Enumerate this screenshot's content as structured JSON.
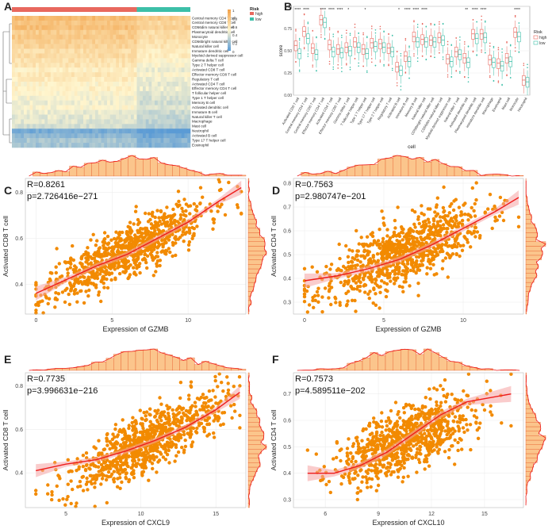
{
  "panels": {
    "A": "A",
    "B": "B",
    "C": "C",
    "D": "D",
    "E": "E",
    "F": "F"
  },
  "legend_a": {
    "risk_title": "Risk",
    "high": "high",
    "low": "low",
    "scale": [
      "1",
      "0.8",
      "0.6",
      "0.4",
      "0.2",
      "0"
    ]
  },
  "colors": {
    "high": "#e8685e",
    "low": "#3cbfa8",
    "heat_warm": "#f2a046",
    "heat_cool": "#5b9bd5",
    "point": "#f28a00",
    "line": "#ee1c1c",
    "band": "#f5a3a3",
    "hist": "#fbc58c",
    "hist_border": "#e65a2a"
  },
  "chart_data": [
    {
      "panel": "A",
      "type": "heatmap",
      "title": "",
      "columns_group": [
        "high",
        "low"
      ],
      "high_fraction": 0.7,
      "rows": [
        "Central memory CD4 T cell",
        "Central memory CD8 T cell",
        "CD56dim natural killer cell",
        "Plasmacytoid dendritic cell",
        "Monocyte",
        "CD56bright natural killer cell",
        "Natural killer cell",
        "Immature dendritic cell",
        "Myeloid derived suppressor cell",
        "Gamma delta T cell",
        "Type 2 T helper cell",
        "Activated CD8 T cell",
        "Effector memory CD8 T cell",
        "Regulatory T cell",
        "Activated CD4 T cell",
        "Effector memory CD4 T cell",
        "T follicular helper cell",
        "Type 1 T helper cell",
        "Memory B cell",
        "Activated dendritic cell",
        "Immature B cell",
        "Natural killer T cell",
        "Macrophage",
        "Mast cell",
        "Neutrophil",
        "Activated B cell",
        "Type 17 T helper cell",
        "Eosinophil"
      ],
      "row_values": [
        0.8,
        0.74,
        0.78,
        0.7,
        0.72,
        0.68,
        0.66,
        0.6,
        0.62,
        0.58,
        0.56,
        0.5,
        0.55,
        0.52,
        0.48,
        0.5,
        0.46,
        0.44,
        0.42,
        0.45,
        0.4,
        0.38,
        0.36,
        0.33,
        0.05,
        0.12,
        0.2,
        0.18
      ],
      "legend": [
        "Risk",
        "high",
        "low"
      ]
    },
    {
      "panel": "B",
      "type": "box",
      "xlabel": "cell",
      "ylabel": "score",
      "ylim": [
        0,
        1
      ],
      "yticks": [
        "0.00",
        "0.25",
        "0.50",
        "0.75",
        "1.00"
      ],
      "legend_title": "Risk",
      "legend": [
        "high",
        "low"
      ],
      "categories": [
        "Activated CD8 T cell",
        "Central memory CD4 T cell",
        "Central memory CD8 T cell",
        "Effector memory CD4 T cell",
        "Activated CD4 T cell",
        "Effector memory CD8 T cell",
        "Gamma delta T cell",
        "T follicular helper cell",
        "Type 1 T helper cell",
        "Type 17 T helper cell",
        "Type 2 T helper cell",
        "Regulatory T cell",
        "Activated B cell",
        "Immature B cell",
        "Memory B cell",
        "Natural killer cell",
        "CD56bright natural killer cell",
        "CD56dim natural killer cell",
        "Myeloid derived suppressor cell",
        "Natural killer T cell",
        "Activated dendritic cell",
        "Plasmacytoid dendritic cell",
        "Immature dendritic cell",
        "Macrophage",
        "Eosinophil",
        "Mast cell",
        "Monocyte",
        "Neutrophil"
      ],
      "significance": [
        "****",
        "****",
        "",
        "****",
        "****",
        "****",
        "*",
        "",
        "*",
        "",
        "",
        "",
        "*",
        "****",
        "****",
        "****",
        "",
        "",
        "",
        "",
        "**",
        "****",
        "****",
        "",
        "",
        "",
        "****",
        ""
      ],
      "series": [
        {
          "name": "high",
          "medians": [
            0.56,
            0.72,
            0.53,
            0.85,
            0.57,
            0.52,
            0.54,
            0.6,
            0.52,
            0.59,
            0.58,
            0.53,
            0.32,
            0.44,
            0.66,
            0.63,
            0.62,
            0.65,
            0.41,
            0.49,
            0.42,
            0.69,
            0.69,
            0.4,
            0.36,
            0.42,
            0.71,
            0.17
          ]
        },
        {
          "name": "low",
          "medians": [
            0.47,
            0.64,
            0.46,
            0.82,
            0.49,
            0.48,
            0.5,
            0.54,
            0.47,
            0.55,
            0.54,
            0.49,
            0.28,
            0.38,
            0.6,
            0.6,
            0.6,
            0.62,
            0.38,
            0.46,
            0.37,
            0.64,
            0.65,
            0.37,
            0.33,
            0.38,
            0.66,
            0.15
          ]
        }
      ]
    },
    {
      "panel": "C",
      "type": "scatter",
      "x_var": "GZMB",
      "xlabel": "Expression of GZMB",
      "ylabel": "Activated CD8 T cell",
      "R": "R=0.8261",
      "p": "p=2.726416e−271",
      "xlim": [
        -0.7,
        13.8
      ],
      "ylim": [
        0.27,
        0.86
      ],
      "xticks": [
        0,
        5,
        10
      ],
      "yticks": [
        0.4,
        0.6,
        0.8
      ],
      "fit_x": [
        0,
        2,
        4,
        6,
        8,
        10,
        12,
        13.5
      ],
      "fit_y": [
        0.36,
        0.42,
        0.48,
        0.53,
        0.6,
        0.67,
        0.76,
        0.82
      ],
      "cloud": {
        "x_mean": 6.0,
        "x_sd": 2.6,
        "x_min": 0,
        "x_max": 13.5,
        "slope": 0.033,
        "intercept": 0.35,
        "noise": 0.055,
        "n": 900,
        "seed": 11
      }
    },
    {
      "panel": "D",
      "type": "scatter",
      "x_var": "GZMB",
      "xlabel": "Expression of GZMB",
      "ylabel": "Activated CD4 T cell",
      "R": "R=0.7563",
      "p": "p=2.980747e−201",
      "xlim": [
        -0.7,
        13.8
      ],
      "ylim": [
        0.25,
        0.82
      ],
      "xticks": [
        0,
        5,
        10
      ],
      "yticks": [
        0.3,
        0.4,
        0.5,
        0.6,
        0.7,
        0.8
      ],
      "fit_x": [
        0,
        2,
        4,
        6,
        8,
        10,
        12,
        13.5
      ],
      "fit_y": [
        0.39,
        0.41,
        0.44,
        0.48,
        0.54,
        0.61,
        0.68,
        0.74
      ],
      "cloud": {
        "x_mean": 6.0,
        "x_sd": 2.6,
        "x_min": 0,
        "x_max": 13.5,
        "slope": 0.027,
        "intercept": 0.34,
        "noise": 0.065,
        "n": 900,
        "seed": 23
      }
    },
    {
      "panel": "E",
      "type": "scatter",
      "x_var": "CXCL9",
      "xlabel": "Expression of CXCL9",
      "ylabel": "Activated CD8 T cell",
      "R": "R=0.7735",
      "p": "p=3.996631e−216",
      "xlim": [
        2.3,
        17.0
      ],
      "ylim": [
        0.24,
        0.86
      ],
      "xticks": [
        5,
        10,
        15
      ],
      "yticks": [
        0.4,
        0.6,
        0.8
      ],
      "fit_x": [
        3,
        5,
        7,
        9,
        11,
        13,
        15,
        16.6
      ],
      "fit_y": [
        0.41,
        0.44,
        0.46,
        0.5,
        0.55,
        0.61,
        0.69,
        0.77
      ],
      "cloud": {
        "x_mean": 10.5,
        "x_sd": 2.5,
        "x_min": 3,
        "x_max": 16.6,
        "slope": 0.034,
        "intercept": 0.19,
        "noise": 0.065,
        "n": 900,
        "seed": 37
      }
    },
    {
      "panel": "F",
      "type": "scatter",
      "x_var": "CXCL10",
      "xlabel": "Expression of CXCL10",
      "ylabel": "Activated CD4 T cell",
      "R": "R=0.7573",
      "p": "p=4.589511e−202",
      "xlim": [
        4.2,
        17.2
      ],
      "ylim": [
        0.27,
        0.78
      ],
      "xticks": [
        6,
        9,
        12,
        15
      ],
      "yticks": [
        0.3,
        0.4,
        0.5,
        0.6,
        0.7
      ],
      "fit_x": [
        5,
        6.5,
        8,
        9.5,
        11,
        12.5,
        14,
        16.5
      ],
      "fit_y": [
        0.4,
        0.4,
        0.43,
        0.48,
        0.55,
        0.62,
        0.67,
        0.7
      ],
      "cloud": {
        "x_mean": 10.6,
        "x_sd": 2.0,
        "x_min": 5,
        "x_max": 16.5,
        "slope": 0.028,
        "intercept": 0.23,
        "noise": 0.06,
        "n": 900,
        "seed": 51
      }
    }
  ]
}
